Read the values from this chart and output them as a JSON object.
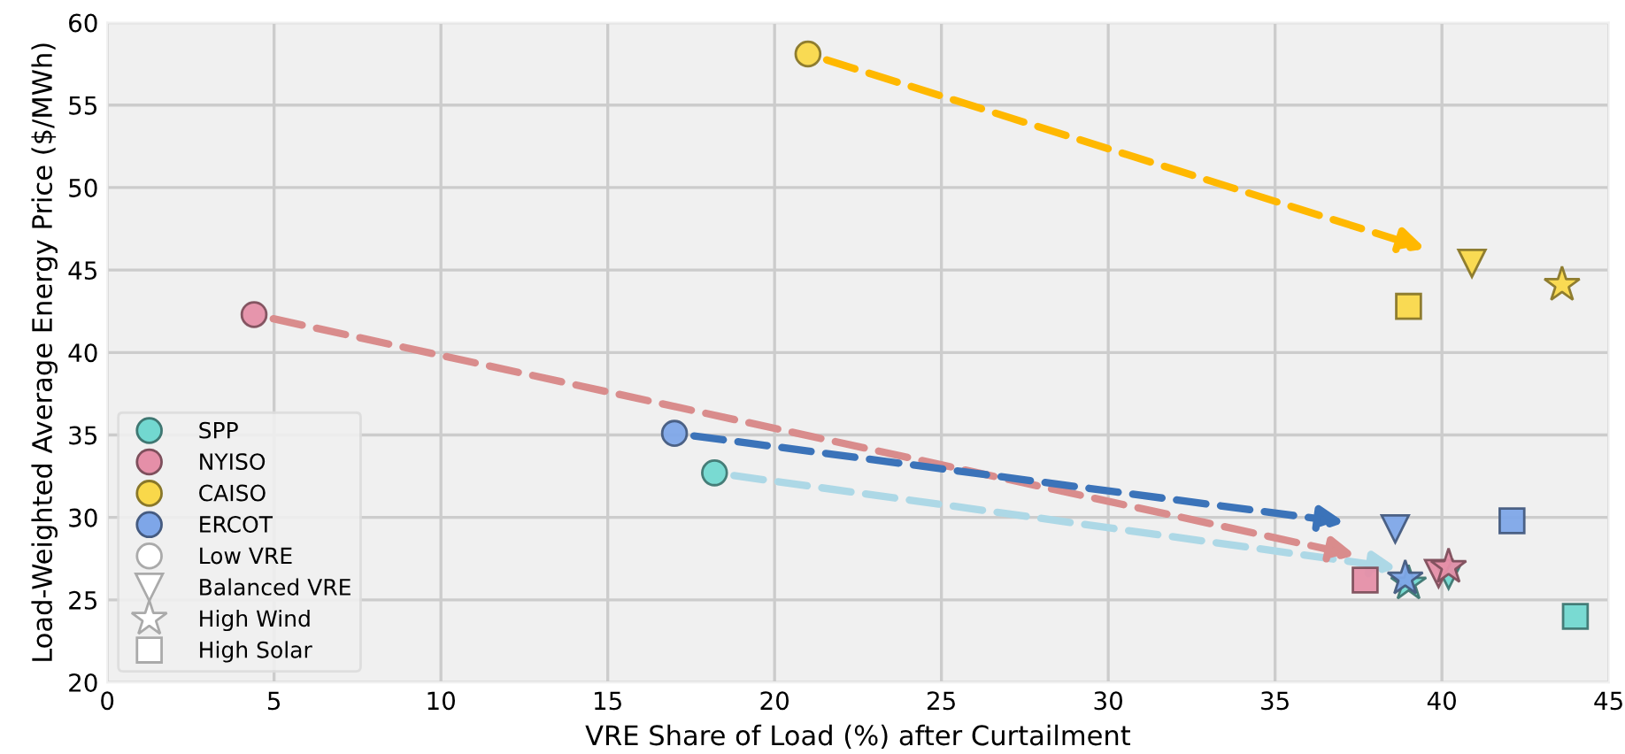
{
  "chart_data": {
    "type": "scatter",
    "xlabel": "VRE Share of Load (%) after Curtailment",
    "ylabel": "Load-Weighted Average Energy Price ($/MWh)",
    "xlim": [
      0,
      45
    ],
    "xticks": [
      0,
      5,
      10,
      15,
      20,
      25,
      30,
      35,
      40,
      45
    ],
    "ylim": [
      20,
      60
    ],
    "yticks": [
      20,
      25,
      30,
      35,
      40,
      45,
      50,
      55,
      60
    ],
    "grid": true,
    "legend": "bottom left",
    "series": [
      {
        "name": "SPP",
        "color": "#72d8d0",
        "x": [
          18.2,
          40.2,
          39.0,
          44.0
        ],
        "values": [
          32.7,
          26.5,
          26.0,
          24.0
        ]
      },
      {
        "name": "NYISO",
        "color": "#e58fa8",
        "x": [
          4.4,
          39.9,
          40.2,
          37.7
        ],
        "values": [
          42.3,
          26.6,
          27.0,
          26.2
        ]
      },
      {
        "name": "CAISO",
        "color": "#f9d84a",
        "x": [
          21.0,
          40.9,
          43.6,
          39.0
        ],
        "values": [
          58.1,
          45.4,
          44.1,
          42.8
        ]
      },
      {
        "name": "ERCOT",
        "color": "#7ea6e8",
        "x": [
          17.0,
          38.6,
          38.9,
          42.1
        ],
        "values": [
          35.1,
          29.3,
          26.3,
          29.8
        ]
      },
      {
        "name": "Low VRE",
        "marker": "circle",
        "color": "#ffffff"
      },
      {
        "name": "Balanced VRE",
        "marker": "triangle",
        "color": "#ffffff"
      },
      {
        "name": "High Wind",
        "marker": "star",
        "color": "#ffffff"
      },
      {
        "name": "High Solar",
        "marker": "square",
        "color": "#ffffff"
      }
    ]
  }
}
